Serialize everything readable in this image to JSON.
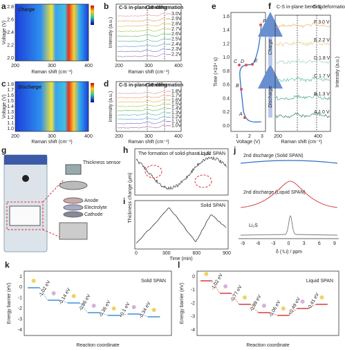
{
  "panels": {
    "a": {
      "letter": "a",
      "label": "Charge",
      "x_label": "Raman shift (cm⁻¹)",
      "y_label": "Voltage (V)",
      "x_ticks": [
        "200",
        "300",
        "400"
      ],
      "y_ticks": [
        "2.8",
        "2.6",
        "2.4",
        "2.2",
        "2.0"
      ]
    },
    "b": {
      "letter": "b",
      "y_label": "Intensity (a.u.)",
      "x_label": "Raman shift (cm⁻¹)",
      "x_ticks": [
        "200",
        "300",
        "400"
      ],
      "annotations": [
        "C-S in-plane bending",
        "C-S deformation"
      ],
      "legend": [
        "3.0V",
        "2.9V",
        "2.8V",
        "2.7V",
        "2.6V",
        "2.5V",
        "2.4V",
        "2.3V",
        "2.2V"
      ]
    },
    "c": {
      "letter": "c",
      "label": "Discharge",
      "x_label": "Raman shift (cm⁻¹)",
      "y_label": "Voltage (V)",
      "x_ticks": [
        "200",
        "300",
        "400"
      ],
      "y_ticks": [
        "1.8",
        "1.7",
        "1.6",
        "1.5",
        "1.4",
        "1.3",
        "1.2",
        "1.1",
        "1.0"
      ]
    },
    "d": {
      "letter": "d",
      "y_label": "Intensity (a.u.)",
      "x_label": "Raman shift (cm⁻¹)",
      "x_ticks": [
        "200",
        "300",
        "400"
      ],
      "annotations": [
        "C-S in-plane bending",
        "C-S deformation"
      ],
      "legend": [
        "1.8V",
        "1.7V",
        "1.6V",
        "1.5V",
        "1.4V",
        "1.3V",
        "1.2V",
        "1.1V",
        "1.0V"
      ]
    },
    "e": {
      "letter": "e",
      "y_label": "Time (×10⁴ s)",
      "x_label": "Voltage (V)",
      "x_ticks": [
        "1",
        "2",
        "3"
      ],
      "y_ticks": [
        "1.6",
        "1.4",
        "1.2",
        "1.0",
        "0.8",
        "0.6",
        "0.4",
        "0.2",
        "0.0"
      ],
      "points": [
        "F",
        "E",
        "D",
        "C",
        "B",
        "A"
      ],
      "arrows": [
        "Charge",
        "Discharge"
      ]
    },
    "f": {
      "letter": "f",
      "y_label": "Intensity (a.u.)",
      "x_label": "Raman shift (cm⁻¹)",
      "x_ticks": [
        "200",
        "400"
      ],
      "annotations": [
        "C-S in-plane bending",
        "C-S deformation"
      ],
      "traces": [
        "F 3.0 V",
        "E 2.2 V",
        "D 1.8 V",
        "C 1.7 V",
        "B 1.3 V",
        "A 1.0 V"
      ]
    },
    "g": {
      "letter": "g",
      "labels": [
        "Thickness sensor",
        "Anode",
        "Electrolyte",
        "Cathode"
      ]
    },
    "h": {
      "letter": "h",
      "note": "The formation of solid-phase Li₂S",
      "label": "Liquid SPAN",
      "y_label": "Thickness change (µm)"
    },
    "i": {
      "letter": "i",
      "label": "Solid SPAN",
      "y_label": "Thickness change (µm)",
      "x_label": "Time (min)",
      "x_ticks": [
        "0",
        "300",
        "600",
        "900"
      ]
    },
    "j": {
      "letter": "j",
      "labels": [
        "2nd discharge (Solid SPAN)",
        "2nd discharge (Liquid SPAN)",
        "Li₂S"
      ],
      "x_label": "δ (⁷Li) / ppm",
      "x_ticks": [
        "-9",
        "-6",
        "-3",
        "0",
        "3",
        "6",
        "9"
      ]
    },
    "k": {
      "letter": "k",
      "label": "Solid SPAN",
      "y_label": "Energy barrier (eV)",
      "x_label": "Reaction coordinate",
      "y_ticks": [
        "1",
        "0",
        "-1",
        "-2",
        "-3",
        "-4"
      ],
      "steps": [
        "-1.02 eV",
        "-0.14 eV",
        "-0.86 eV",
        "-0.36 eV",
        "+0.1 eV",
        "-0.34 eV"
      ]
    },
    "l": {
      "letter": "l",
      "label": "Liquid SPAN",
      "y_label": "Energy barrier (eV)",
      "x_label": "Reaction coordinate",
      "y_ticks": [
        "0",
        "-1",
        "-2",
        "-3",
        "-4"
      ],
      "steps": [
        "-1.02 eV",
        "-0.77 eV",
        "-0.89 eV",
        "-0.06 eV",
        "+0.49 eV",
        "-0.41 eV"
      ]
    }
  }
}
